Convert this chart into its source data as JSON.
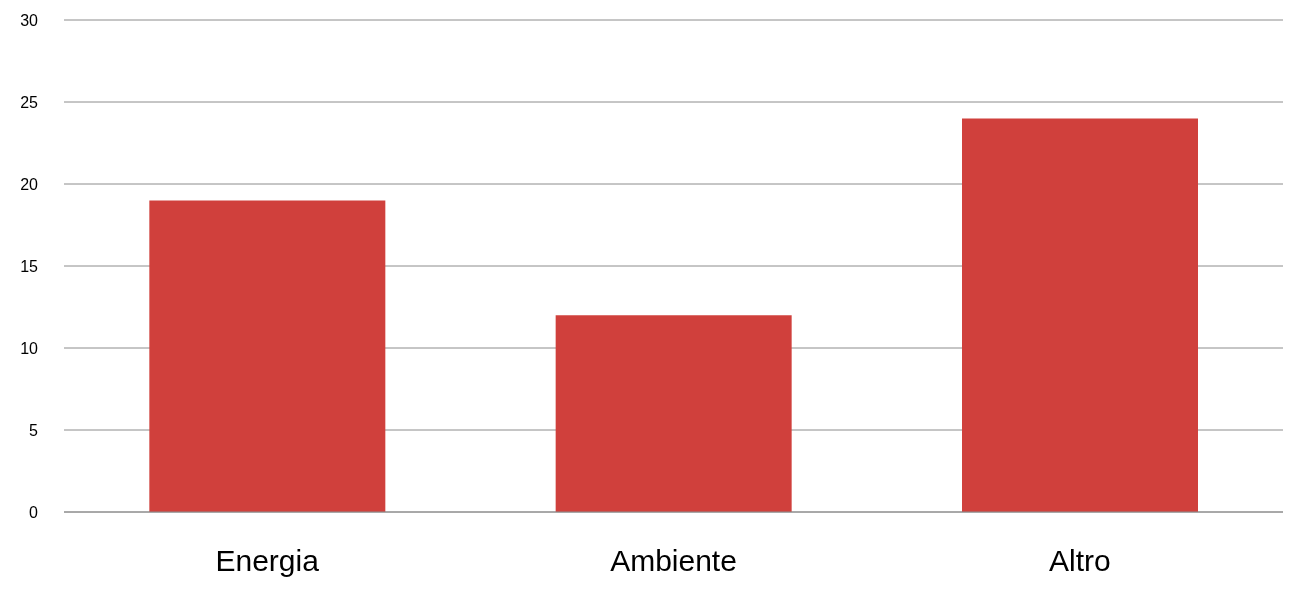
{
  "chart_data": {
    "type": "bar",
    "categories": [
      "Energia",
      "Ambiente",
      "Altro"
    ],
    "values": [
      19,
      12,
      24
    ],
    "color": "#d0403c",
    "ylim": [
      0,
      30
    ],
    "yticks": [
      0,
      5,
      10,
      15,
      20,
      25,
      30
    ],
    "grid": "y"
  }
}
